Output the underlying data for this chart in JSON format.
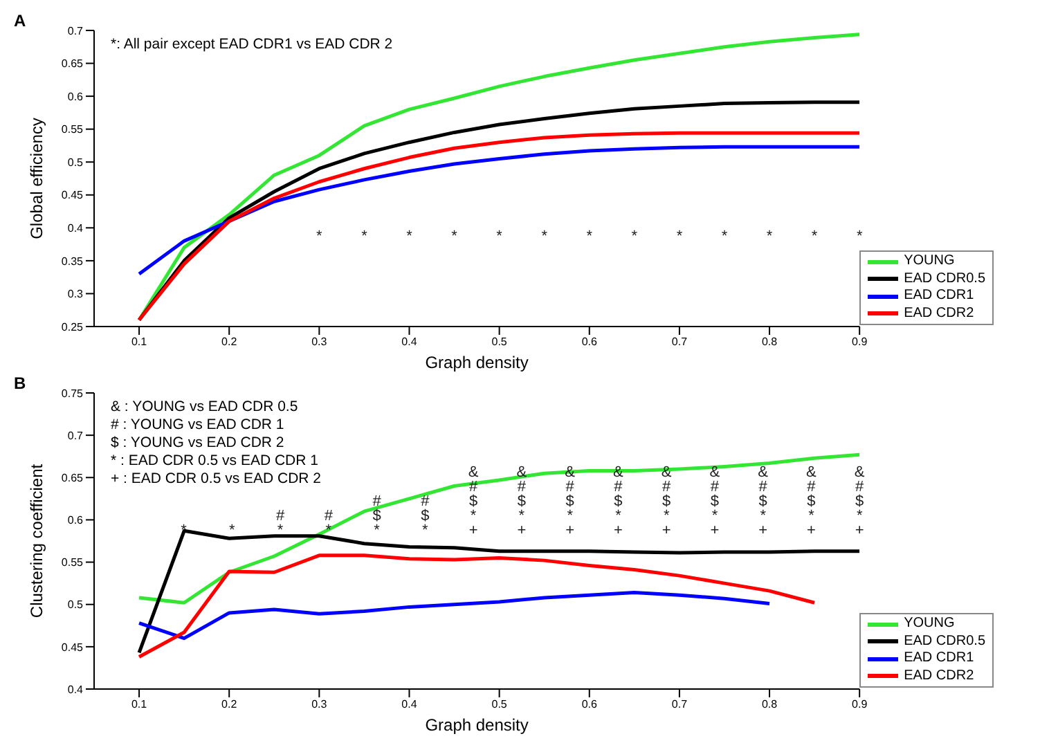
{
  "chart_data": [
    {
      "type": "line",
      "title": "A",
      "xlabel": "Graph density",
      "ylabel": "Global efficiency",
      "x": [
        0.1,
        0.15,
        0.2,
        0.25,
        0.3,
        0.35,
        0.4,
        0.45,
        0.5,
        0.55,
        0.6,
        0.65,
        0.7,
        0.75,
        0.8,
        0.85,
        0.9
      ],
      "xlim": [
        0.05,
        0.9
      ],
      "xticks": [
        0.1,
        0.2,
        0.3,
        0.4,
        0.5,
        0.6,
        0.7,
        0.8,
        0.9
      ],
      "ylim": [
        0.25,
        0.7
      ],
      "yticks": [
        0.25,
        0.3,
        0.35,
        0.4,
        0.45,
        0.5,
        0.55,
        0.6,
        0.65,
        0.7
      ],
      "grid": false,
      "legend": "bottom right",
      "marker": "none",
      "line_style": "solid",
      "series": [
        {
          "name": "YOUNG",
          "color": "#33e633",
          "values": [
            0.26,
            0.37,
            0.42,
            0.48,
            0.51,
            0.555,
            0.58,
            0.597,
            0.615,
            0.63,
            0.643,
            0.655,
            0.665,
            0.675,
            0.683,
            0.689,
            0.694
          ]
        },
        {
          "name": "EAD CDR0.5",
          "color": "#000000",
          "values": [
            0.26,
            0.35,
            0.415,
            0.455,
            0.49,
            0.513,
            0.53,
            0.545,
            0.557,
            0.566,
            0.574,
            0.581,
            0.585,
            0.589,
            0.59,
            0.591,
            0.591
          ]
        },
        {
          "name": "EAD CDR1",
          "color": "#0000ff",
          "values": [
            0.33,
            0.38,
            0.41,
            0.44,
            0.458,
            0.473,
            0.486,
            0.497,
            0.505,
            0.512,
            0.517,
            0.52,
            0.522,
            0.523,
            0.523,
            0.523,
            0.523
          ]
        },
        {
          "name": "EAD CDR2",
          "color": "#ff0000",
          "values": [
            0.26,
            0.345,
            0.41,
            0.445,
            0.47,
            0.49,
            0.507,
            0.521,
            0.53,
            0.537,
            0.541,
            0.543,
            0.544,
            0.544,
            0.544,
            0.544,
            0.544
          ]
        }
      ],
      "annotations": [
        "*: All pair except EAD CDR1 vs EAD CDR 2",
        "*",
        "*",
        "*",
        "*",
        "*",
        "*",
        "*",
        "*",
        "*",
        "*",
        "*",
        "*",
        "*"
      ]
    },
    {
      "type": "line",
      "title": "B",
      "xlabel": "Graph density",
      "ylabel": "Clustering coefficient",
      "x": [
        0.1,
        0.15,
        0.2,
        0.25,
        0.3,
        0.35,
        0.4,
        0.45,
        0.5,
        0.55,
        0.6,
        0.65,
        0.7,
        0.75,
        0.8,
        0.85,
        0.9
      ],
      "xlim": [
        0.05,
        0.9
      ],
      "xticks": [
        0.1,
        0.2,
        0.3,
        0.4,
        0.5,
        0.6,
        0.7,
        0.8,
        0.9
      ],
      "ylim": [
        0.4,
        0.75
      ],
      "yticks": [
        0.4,
        0.45,
        0.5,
        0.55,
        0.6,
        0.65,
        0.7,
        0.75
      ],
      "grid": false,
      "legend": "bottom right",
      "marker": "none",
      "line_style": "solid",
      "series": [
        {
          "name": "YOUNG",
          "color": "#33e633",
          "values": [
            0.508,
            0.502,
            0.538,
            0.557,
            0.583,
            0.61,
            0.625,
            0.64,
            0.647,
            0.655,
            0.658,
            0.658,
            0.66,
            0.663,
            0.667,
            0.673,
            0.677
          ]
        },
        {
          "name": "EAD CDR0.5",
          "color": "#000000",
          "values": [
            0.443,
            0.587,
            0.578,
            0.581,
            0.581,
            0.572,
            0.568,
            0.567,
            0.563,
            0.563,
            0.563,
            0.562,
            0.561,
            0.562,
            0.562,
            0.563,
            0.563
          ]
        },
        {
          "name": "EAD CDR1",
          "color": "#0000ff",
          "values": [
            0.478,
            0.46,
            0.49,
            0.494,
            0.489,
            0.492,
            0.497,
            0.5,
            0.503,
            0.508,
            0.511,
            0.514,
            0.511,
            0.507,
            0.501,
            null,
            null
          ]
        },
        {
          "name": "EAD CDR2",
          "color": "#ff0000",
          "values": [
            0.438,
            0.467,
            0.539,
            0.538,
            0.558,
            0.558,
            0.554,
            0.553,
            0.555,
            0.552,
            0.546,
            0.541,
            0.534,
            0.525,
            0.516,
            0.502,
            null
          ]
        }
      ],
      "annotations": [
        "& : YOUNG vs EAD CDR 0.5",
        "# : YOUNG vs EAD CDR 1",
        "$ : YOUNG vs EAD CDR 2",
        "* : EAD CDR 0.5 vs EAD CDR 1",
        "+ : EAD CDR 0.5 vs EAD CDR 2",
        "*",
        "*",
        "#\n*",
        "#\n*",
        "#\n$\n*",
        "#\n$\n*",
        "&\n#\n$\n*\n+",
        "&\n#\n$\n*\n+",
        "&\n#\n$\n*\n+",
        "&\n#\n$\n*\n+",
        "&\n#\n$\n*\n+",
        "&\n#\n$\n*\n+",
        "&\n#\n$\n*\n+",
        "&\n#\n$\n*\n+",
        "&\n#\n$\n*\n+"
      ]
    }
  ]
}
